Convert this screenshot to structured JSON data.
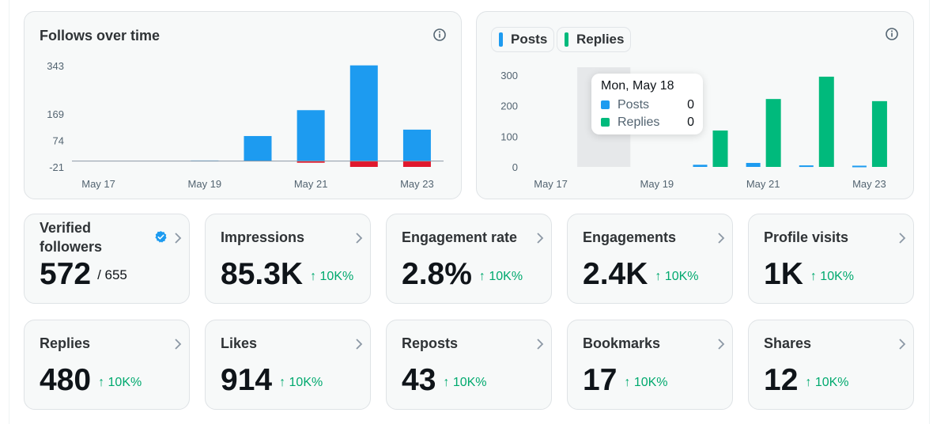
{
  "follows_chart": {
    "title": "Follows over time",
    "info_icon": "info-icon",
    "colors": {
      "positive": "#1d9bf0",
      "negative": "#e0182d",
      "baseline": "#8b98a5"
    },
    "chart_data": {
      "type": "bar",
      "categories": [
        "May 17",
        "May 18",
        "May 19",
        "May 20",
        "May 21",
        "May 22",
        "May 23"
      ],
      "x_tick_labels": [
        "May 17",
        "May 19",
        "May 21",
        "May 23"
      ],
      "y_ticks": [
        343,
        169,
        74,
        -21
      ],
      "ylim": [
        -21,
        343
      ],
      "series": [
        {
          "values": [
            0,
            0,
            2,
            90,
            183,
            344,
            113
          ]
        },
        {
          "values": [
            0,
            0,
            0,
            0,
            -6,
            -21,
            -21
          ]
        }
      ],
      "grid": false
    }
  },
  "activity_chart": {
    "legend": [
      {
        "label": "Posts",
        "color": "#1d9bf0"
      },
      {
        "label": "Replies",
        "color": "#00ba7c"
      }
    ],
    "info_icon": "info-icon",
    "chart_data": {
      "type": "bar",
      "categories": [
        "May 17",
        "May 18",
        "May 19",
        "May 20",
        "May 21",
        "May 22",
        "May 23"
      ],
      "x_tick_labels": [
        "May 17",
        "May 19",
        "May 21",
        "May 23"
      ],
      "y_ticks": [
        300,
        200,
        100,
        0
      ],
      "ylim": [
        0,
        300
      ],
      "series": [
        {
          "name": "Posts",
          "values": [
            0,
            0,
            0,
            7,
            13,
            5,
            4
          ]
        },
        {
          "name": "Replies",
          "values": [
            0,
            0,
            0,
            119,
            222,
            295,
            215
          ]
        }
      ],
      "highlighted_category": "May 18",
      "grid": false
    },
    "tooltip": {
      "date": "Mon, May 18",
      "rows": [
        {
          "label": "Posts",
          "value": "0",
          "color": "#1d9bf0"
        },
        {
          "label": "Replies",
          "value": "0",
          "color": "#00ba7c"
        }
      ]
    }
  },
  "metrics": [
    {
      "title": "Verified followers",
      "value": "572",
      "total": "/ 655",
      "verified_icon": "verified-badge-icon"
    },
    {
      "title": "Impressions",
      "value": "85.3K",
      "change": "↑ 10K%"
    },
    {
      "title": "Engagement rate",
      "value": "2.8%",
      "change": "↑ 10K%"
    },
    {
      "title": "Engagements",
      "value": "2.4K",
      "change": "↑ 10K%"
    },
    {
      "title": "Profile visits",
      "value": "1K",
      "change": "↑ 10K%"
    },
    {
      "title": "Replies",
      "value": "480",
      "change": "↑ 10K%"
    },
    {
      "title": "Likes",
      "value": "914",
      "change": "↑ 10K%"
    },
    {
      "title": "Reposts",
      "value": "43",
      "change": "↑ 10K%"
    },
    {
      "title": "Bookmarks",
      "value": "17",
      "change": "↑ 10K%"
    },
    {
      "title": "Shares",
      "value": "12",
      "change": "↑ 10K%"
    }
  ],
  "colors": {
    "accent": "#1d9bf0",
    "positive_change": "#00a96e",
    "card_bg": "#f7f9f9",
    "card_border": "#dfe3e6"
  }
}
